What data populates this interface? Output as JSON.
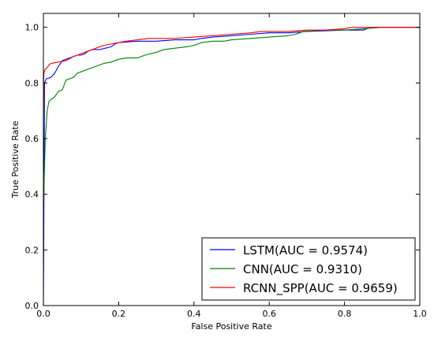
{
  "chart_data": {
    "type": "line",
    "xlabel": "False Positive Rate",
    "ylabel": "True Positive Rate",
    "xlim": [
      0,
      1
    ],
    "ylim": [
      0,
      1.05
    ],
    "xticks": [
      "0.0",
      "0.2",
      "0.4",
      "0.6",
      "0.8",
      "1.0"
    ],
    "yticks": [
      "0.0",
      "0.2",
      "0.4",
      "0.6",
      "0.8",
      "1.0"
    ],
    "grid": false,
    "legend_position": "bottom-right",
    "series": [
      {
        "name": "LSTM(AUC = 0.9574)",
        "color": "#0000ff",
        "x": [
          0,
          0.003,
          0.008,
          0.02,
          0.03,
          0.04,
          0.05,
          0.06,
          0.08,
          0.09,
          0.1,
          0.11,
          0.12,
          0.13,
          0.15,
          0.18,
          0.19,
          0.2,
          0.25,
          0.3,
          0.35,
          0.4,
          0.42,
          0.45,
          0.5,
          0.55,
          0.6,
          0.65,
          0.7,
          0.8,
          0.85,
          0.87,
          0.9,
          0.95,
          1.0
        ],
        "y": [
          0,
          0.8,
          0.815,
          0.82,
          0.835,
          0.86,
          0.88,
          0.885,
          0.895,
          0.9,
          0.9,
          0.905,
          0.915,
          0.92,
          0.92,
          0.93,
          0.94,
          0.945,
          0.95,
          0.95,
          0.955,
          0.955,
          0.96,
          0.965,
          0.97,
          0.975,
          0.98,
          0.98,
          0.985,
          0.99,
          0.99,
          1.0,
          1.0,
          1.0,
          1.0
        ]
      },
      {
        "name": "CNN(AUC = 0.9310)",
        "color": "#008000",
        "x": [
          0,
          0.002,
          0.005,
          0.01,
          0.015,
          0.02,
          0.03,
          0.04,
          0.05,
          0.06,
          0.07,
          0.08,
          0.09,
          0.1,
          0.12,
          0.14,
          0.16,
          0.18,
          0.19,
          0.2,
          0.22,
          0.25,
          0.27,
          0.3,
          0.32,
          0.35,
          0.38,
          0.4,
          0.42,
          0.45,
          0.48,
          0.5,
          0.55,
          0.6,
          0.65,
          0.67,
          0.69,
          0.75,
          0.8,
          0.85,
          0.9,
          0.95,
          1.0
        ],
        "y": [
          0.37,
          0.45,
          0.6,
          0.7,
          0.735,
          0.74,
          0.75,
          0.77,
          0.775,
          0.81,
          0.815,
          0.82,
          0.835,
          0.84,
          0.85,
          0.86,
          0.87,
          0.875,
          0.88,
          0.885,
          0.89,
          0.89,
          0.9,
          0.91,
          0.92,
          0.925,
          0.93,
          0.935,
          0.945,
          0.95,
          0.95,
          0.955,
          0.96,
          0.965,
          0.97,
          0.975,
          0.985,
          0.99,
          0.99,
          0.995,
          1.0,
          1.0,
          1.0
        ]
      },
      {
        "name": "RCNN_SPP(AUC = 0.9659)",
        "color": "#ff0000",
        "x": [
          0,
          0.001,
          0.003,
          0.005,
          0.01,
          0.015,
          0.02,
          0.04,
          0.06,
          0.08,
          0.1,
          0.12,
          0.14,
          0.16,
          0.18,
          0.2,
          0.22,
          0.25,
          0.28,
          0.3,
          0.35,
          0.4,
          0.45,
          0.5,
          0.55,
          0.58,
          0.6,
          0.65,
          0.7,
          0.75,
          0.8,
          0.82,
          0.85,
          0.9,
          0.95,
          1.0
        ],
        "y": [
          0.63,
          0.83,
          0.845,
          0.85,
          0.855,
          0.865,
          0.87,
          0.875,
          0.88,
          0.895,
          0.905,
          0.915,
          0.925,
          0.935,
          0.94,
          0.945,
          0.95,
          0.955,
          0.96,
          0.96,
          0.96,
          0.965,
          0.97,
          0.975,
          0.98,
          0.985,
          0.985,
          0.985,
          0.99,
          0.99,
          0.995,
          1.0,
          1.0,
          1.0,
          1.0,
          1.0
        ]
      }
    ]
  }
}
